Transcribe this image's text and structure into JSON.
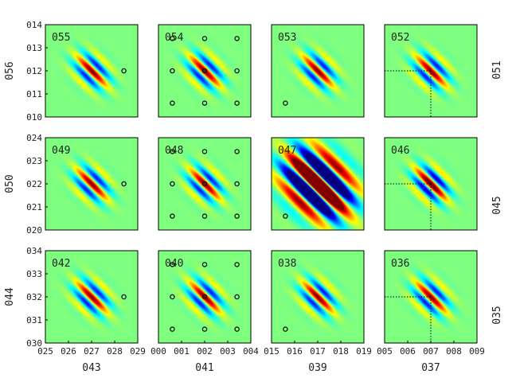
{
  "colors": {
    "background": "#00ffff",
    "frame": "#000000",
    "marker": "#000000",
    "guide_line": "#000000"
  },
  "colormap": "jet",
  "chart_data": {
    "type": "heatmap",
    "layout": "3x4 grid of panels",
    "panels": [
      {
        "label": "055",
        "strength": 1.0,
        "markers": [
          [
            0.27,
            0.2
          ]
        ],
        "guides": false
      },
      {
        "label": "054",
        "strength": 1.0,
        "markers": [
          [
            0.13,
            0.27
          ],
          [
            0.2,
            0.27
          ],
          [
            0.27,
            0.27
          ],
          [
            0.13,
            0.2
          ],
          [
            0.2,
            0.2
          ],
          [
            0.27,
            0.2
          ],
          [
            0.13,
            0.13
          ],
          [
            0.2,
            0.13
          ],
          [
            0.27,
            0.13
          ]
        ],
        "guides": false
      },
      {
        "label": "053",
        "strength": 1.0,
        "markers": [
          [
            0.13,
            0.13
          ]
        ],
        "guides": false
      },
      {
        "label": "052",
        "strength": 1.0,
        "markers": [],
        "guides": true
      },
      {
        "label": "049",
        "strength": 1.0,
        "markers": [
          [
            0.27,
            0.2
          ]
        ],
        "guides": false
      },
      {
        "label": "048",
        "strength": 1.0,
        "markers": [
          [
            0.13,
            0.27
          ],
          [
            0.2,
            0.27
          ],
          [
            0.27,
            0.27
          ],
          [
            0.13,
            0.2
          ],
          [
            0.2,
            0.2
          ],
          [
            0.27,
            0.2
          ],
          [
            0.13,
            0.13
          ],
          [
            0.2,
            0.13
          ],
          [
            0.27,
            0.13
          ]
        ],
        "guides": false
      },
      {
        "label": "047",
        "strength": 3.0,
        "markers": [
          [
            0.13,
            0.13
          ]
        ],
        "guides": false
      },
      {
        "label": "046",
        "strength": 1.2,
        "markers": [],
        "guides": true
      },
      {
        "label": "042",
        "strength": 1.0,
        "markers": [
          [
            0.27,
            0.2
          ]
        ],
        "guides": false
      },
      {
        "label": "040",
        "strength": 1.0,
        "markers": [
          [
            0.13,
            0.27
          ],
          [
            0.2,
            0.27
          ],
          [
            0.27,
            0.27
          ],
          [
            0.13,
            0.2
          ],
          [
            0.2,
            0.2
          ],
          [
            0.27,
            0.2
          ],
          [
            0.13,
            0.13
          ],
          [
            0.2,
            0.13
          ],
          [
            0.27,
            0.13
          ]
        ],
        "guides": false
      },
      {
        "label": "038",
        "strength": 1.0,
        "markers": [
          [
            0.13,
            0.13
          ]
        ],
        "guides": false
      },
      {
        "label": "036",
        "strength": 1.0,
        "markers": [],
        "guides": true
      }
    ],
    "row_ylim": [
      [
        0.1,
        0.14
      ],
      [
        0.2,
        0.24
      ],
      [
        0.3,
        0.34
      ]
    ],
    "row_yticks": [
      [
        "014",
        "013",
        "012",
        "011",
        "010"
      ],
      [
        "024",
        "023",
        "022",
        "021",
        "020"
      ],
      [
        "034",
        "033",
        "032",
        "031",
        "030"
      ]
    ],
    "col_xticks": [
      [
        "025",
        "026",
        "027",
        "028",
        "029"
      ],
      [
        "000",
        "001",
        "002",
        "003",
        "004"
      ],
      [
        "015",
        "016",
        "017",
        "018",
        "019"
      ],
      [
        "005",
        "006",
        "007",
        "008",
        "009"
      ]
    ],
    "xlabels": [
      "043",
      "041",
      "039",
      "037"
    ],
    "ylabels": [
      "056",
      "050",
      "044"
    ],
    "right_labels": [
      "051",
      "045",
      "035"
    ],
    "guide_point": [
      0.2,
      0.2
    ]
  }
}
